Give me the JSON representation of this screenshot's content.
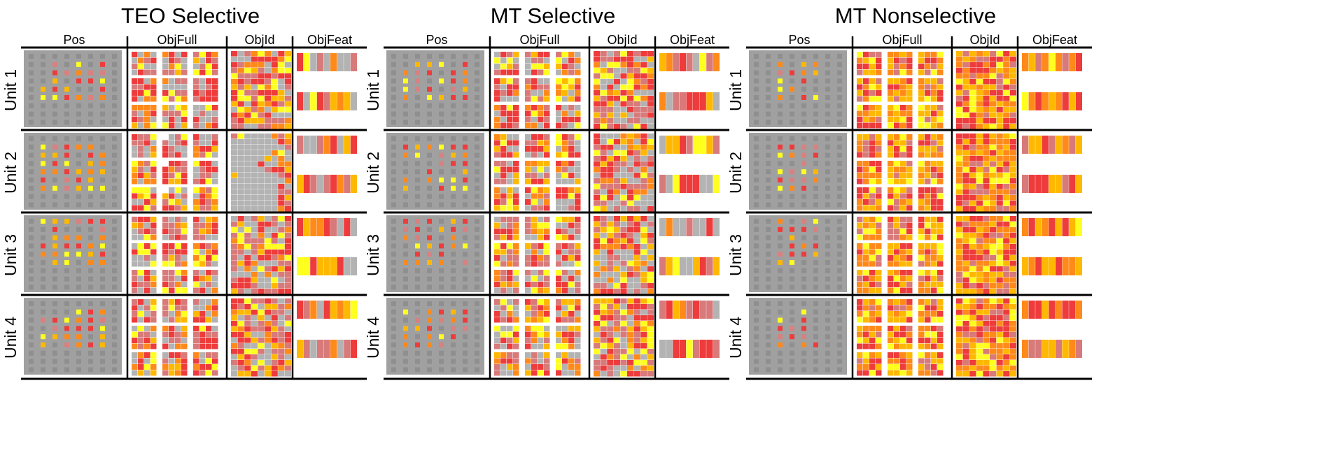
{
  "figure": {
    "panels": [
      {
        "title": "TEO Selective",
        "seed": 11
      },
      {
        "title": "MT Selective",
        "seed": 29
      },
      {
        "title": "MT Nonselective",
        "seed": 47
      }
    ],
    "columns": [
      "Pos",
      "ObjFull",
      "ObjId",
      "ObjFeat"
    ],
    "rows": [
      "Unit 1",
      "Unit 2",
      "Unit 3",
      "Unit 4"
    ],
    "colors": {
      "background_gray": "#a0a0a0",
      "cell_gray": "#b3b3b3",
      "muted_gray": "#8f8f8f",
      "red": "#ee3b3b",
      "light_red": "#d98080",
      "orange": "#ff8a1a",
      "amber": "#ffb800",
      "yellow": "#ffff20",
      "pink": "#d87a7a",
      "line": "#000000"
    }
  }
}
